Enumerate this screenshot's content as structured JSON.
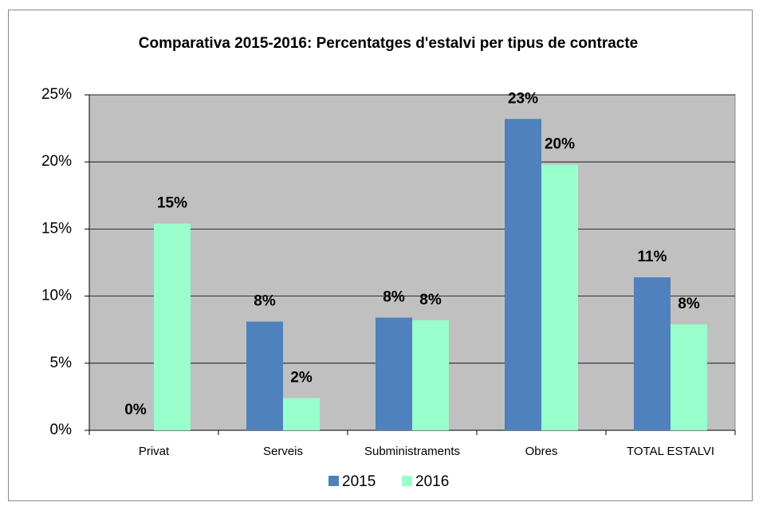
{
  "chart_data": {
    "type": "bar",
    "title": "Comparativa 2015-2016: Percentatges d'estalvi per tipus de contracte",
    "categories": [
      "Privat",
      "Serveis",
      "Subministraments",
      "Obres",
      "TOTAL ESTALVI"
    ],
    "series": [
      {
        "name": "2015",
        "color": "#4f81bd",
        "values": [
          0,
          8.1,
          8.4,
          23.2,
          11.4
        ],
        "value_labels": [
          "0%",
          "8%",
          "8%",
          "23%",
          "11%"
        ]
      },
      {
        "name": "2016",
        "color": "#99ffcc",
        "values": [
          15.4,
          2.4,
          8.2,
          19.8,
          7.9
        ],
        "value_labels": [
          "15%",
          "2%",
          "8%",
          "20%",
          "8%"
        ]
      }
    ],
    "ylim": [
      0,
      25
    ],
    "yticks": [
      {
        "value": 0,
        "label": "0%"
      },
      {
        "value": 5,
        "label": "5%"
      },
      {
        "value": 10,
        "label": "10%"
      },
      {
        "value": 15,
        "label": "15%"
      },
      {
        "value": 20,
        "label": "20%"
      },
      {
        "value": 25,
        "label": "25%"
      }
    ],
    "grid": true,
    "plot_background": "#c0c0c0",
    "legend": "bottom"
  }
}
